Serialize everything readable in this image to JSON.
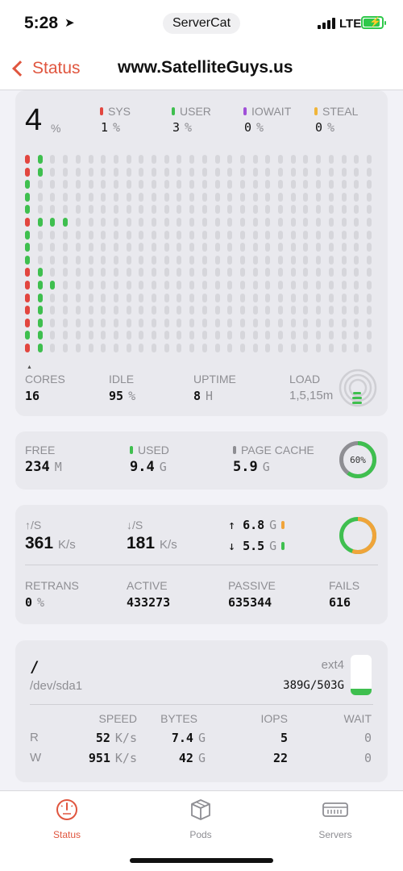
{
  "status_bar": {
    "time": "5:28",
    "location_icon": "location-arrow-icon",
    "app": "ServerCat",
    "network": "LTE"
  },
  "nav": {
    "back_label": "Status",
    "title": "www.SatelliteGuys.us"
  },
  "cpu": {
    "total": "4",
    "total_unit": "%",
    "legend": [
      {
        "label": "SYS",
        "value": "1",
        "unit": "%",
        "color": "#e2463f"
      },
      {
        "label": "USER",
        "value": "3",
        "unit": "%",
        "color": "#3fbf4f"
      },
      {
        "label": "IOWAIT",
        "value": "0",
        "unit": "%",
        "color": "#a050d8"
      },
      {
        "label": "STEAL",
        "value": "0",
        "unit": "%",
        "color": "#f0b53a"
      }
    ],
    "history_rows": [
      {
        "sys": 1,
        "user": 1
      },
      {
        "sys": 1,
        "user": 1
      },
      {
        "sys": 0,
        "user": 1
      },
      {
        "sys": 0,
        "user": 1
      },
      {
        "sys": 0,
        "user": 1
      },
      {
        "sys": 1,
        "user": 3
      },
      {
        "sys": 0,
        "user": 1
      },
      {
        "sys": 0,
        "user": 1
      },
      {
        "sys": 0,
        "user": 1
      },
      {
        "sys": 1,
        "user": 1
      },
      {
        "sys": 1,
        "user": 2
      },
      {
        "sys": 1,
        "user": 1
      },
      {
        "sys": 1,
        "user": 1
      },
      {
        "sys": 1,
        "user": 1
      },
      {
        "sys": 0,
        "user": 2
      },
      {
        "sys": 1,
        "user": 1
      }
    ],
    "stats": [
      {
        "label": "CORES",
        "value": "16",
        "unit": ""
      },
      {
        "label": "IDLE",
        "value": "95",
        "unit": "%"
      },
      {
        "label": "UPTIME",
        "value": "8",
        "unit": "H"
      },
      {
        "label": "LOAD",
        "value": "1,5,15m",
        "unit": ""
      }
    ]
  },
  "memory": {
    "items": [
      {
        "label": "FREE",
        "value": "234",
        "unit": "M",
        "color": ""
      },
      {
        "label": "USED",
        "value": "9.4",
        "unit": "G",
        "color": "#3fbf4f"
      },
      {
        "label": "PAGE CACHE",
        "value": "5.9",
        "unit": "G",
        "color": "#8e8e93"
      }
    ],
    "donut_label": "60%",
    "used_fraction": 0.6
  },
  "network": {
    "up_label": "↑/S",
    "up_value": "361",
    "up_unit": "K/s",
    "down_label": "↓/S",
    "down_value": "181",
    "down_unit": "K/s",
    "total_up": "6.8",
    "total_up_unit": "G",
    "total_down": "5.5",
    "total_down_unit": "G",
    "up_color": "#f0a43a",
    "down_color": "#3fbf4f",
    "stats": [
      {
        "label": "RETRANS",
        "value": "0",
        "unit": "%"
      },
      {
        "label": "ACTIVE",
        "value": "433273",
        "unit": ""
      },
      {
        "label": "PASSIVE",
        "value": "635344",
        "unit": ""
      },
      {
        "label": "FAILS",
        "value": "616",
        "unit": ""
      }
    ]
  },
  "disk": {
    "mount": "/",
    "device": "/dev/sda1",
    "fs": "ext4",
    "usage": "389G/503G",
    "used_fraction": 0.77,
    "headers": [
      "SPEED",
      "BYTES",
      "IOPS",
      "WAIT"
    ],
    "rows": [
      {
        "label": "R",
        "speed": "52",
        "speed_unit": "K/s",
        "bytes": "7.4",
        "bytes_unit": "G",
        "iops": "5",
        "wait": "0"
      },
      {
        "label": "W",
        "speed": "951",
        "speed_unit": "K/s",
        "bytes": "42",
        "bytes_unit": "G",
        "iops": "22",
        "wait": "0"
      }
    ]
  },
  "tabs": [
    {
      "label": "Status",
      "icon": "gauge-icon",
      "active": true
    },
    {
      "label": "Pods",
      "icon": "box-icon",
      "active": false
    },
    {
      "label": "Servers",
      "icon": "server-icon",
      "active": false
    }
  ],
  "accent": "#e0563f"
}
